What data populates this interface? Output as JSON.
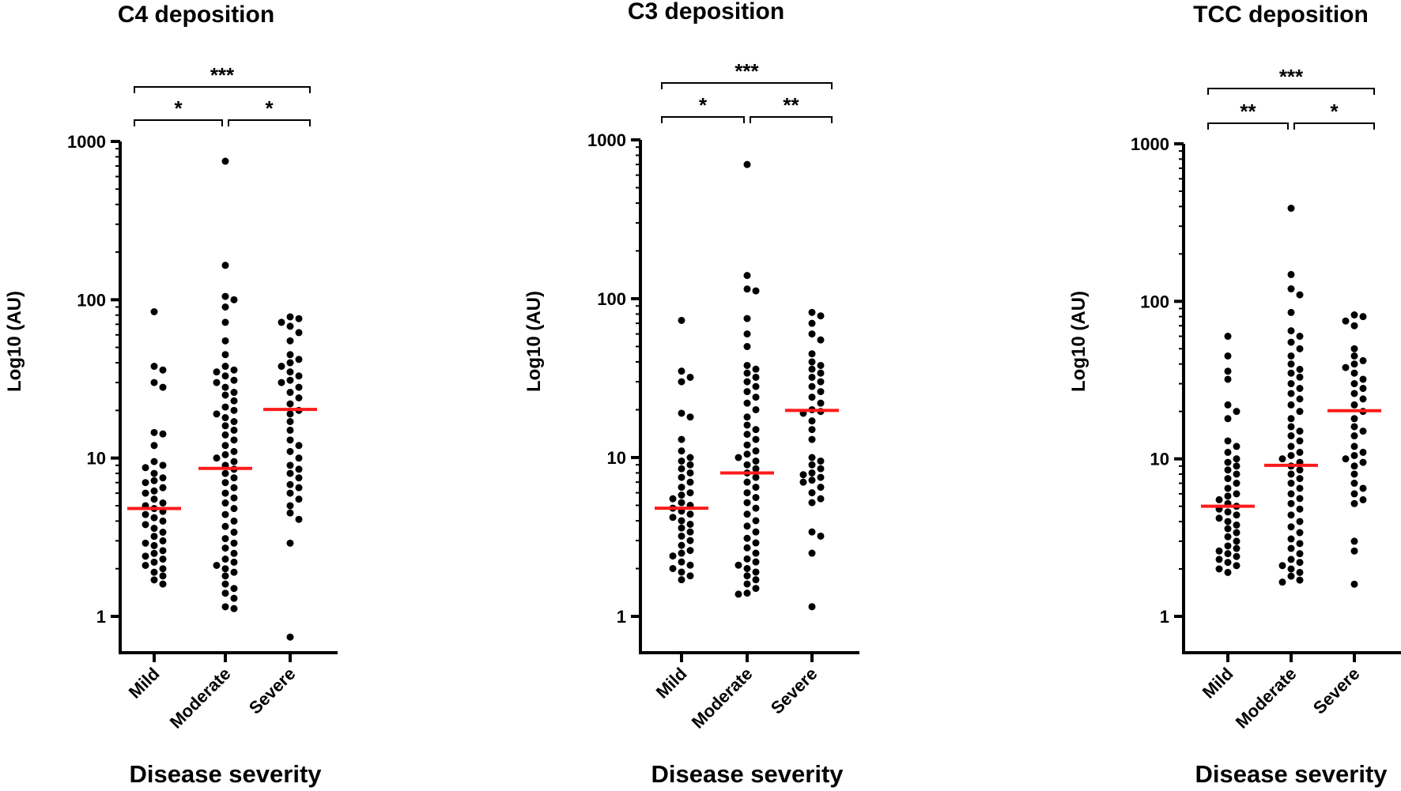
{
  "chart_data": [
    {
      "type": "scatter",
      "subtype": "dot-plot-with-median",
      "title": "C4 deposition",
      "ylabel": "Log10 (AU)",
      "xlabel": "Disease severity",
      "yscale": "log",
      "ylim": [
        0.6,
        1000
      ],
      "yticks": [
        1,
        10,
        100,
        1000
      ],
      "ytick_labels": [
        "1",
        "10",
        "100",
        "1000"
      ],
      "categories": [
        "Mild",
        "Moderate",
        "Severe"
      ],
      "medians": [
        4.8,
        8.6,
        20.3
      ],
      "significance": [
        {
          "from": 0,
          "to": 1,
          "label": "*"
        },
        {
          "from": 1,
          "to": 2,
          "label": "*"
        },
        {
          "from": 0,
          "to": 2,
          "label": "***"
        }
      ],
      "series": [
        {
          "name": "Mild",
          "values": [
            84,
            38,
            36,
            30,
            28,
            14.5,
            14.2,
            12,
            9.5,
            9,
            8.7,
            8,
            7.5,
            7.2,
            7,
            6.5,
            6.2,
            6,
            5.5,
            5.2,
            5,
            4.8,
            4.6,
            4.4,
            4.2,
            4,
            3.8,
            3.6,
            3.4,
            3.2,
            3,
            2.9,
            2.8,
            2.6,
            2.5,
            2.4,
            2.3,
            2.2,
            2.1,
            2,
            1.9,
            1.8,
            1.7,
            1.6
          ]
        },
        {
          "name": "Moderate",
          "values": [
            750,
            165,
            105,
            100,
            90,
            72,
            55,
            45,
            38,
            36,
            35,
            33,
            31,
            30,
            28,
            26,
            25,
            23,
            21,
            20,
            19,
            18,
            17,
            16,
            15,
            14,
            13,
            12,
            11,
            10.5,
            10,
            9.5,
            9,
            8.5,
            8,
            7.5,
            7,
            6.5,
            6,
            5.6,
            5.2,
            4.8,
            4.4,
            4,
            3.7,
            3.4,
            3.1,
            2.9,
            2.7,
            2.5,
            2.3,
            2.2,
            2.1,
            2,
            1.9,
            1.8,
            1.6,
            1.5,
            1.4,
            1.3,
            1.15,
            1.12
          ]
        },
        {
          "name": "Severe",
          "values": [
            78,
            76,
            72,
            68,
            62,
            55,
            45,
            42,
            40,
            38,
            35,
            33,
            31,
            30,
            28,
            26,
            24,
            22,
            20,
            19,
            17,
            15,
            13,
            12,
            11,
            10,
            9,
            8.5,
            8,
            7.5,
            6.8,
            6.5,
            6,
            5.5,
            5,
            4.5,
            4.1,
            2.9,
            0.74
          ]
        }
      ]
    },
    {
      "type": "scatter",
      "subtype": "dot-plot-with-median",
      "title": "C3 deposition",
      "ylabel": "Log10 (AU)",
      "xlabel": "Disease severity",
      "yscale": "log",
      "ylim": [
        0.6,
        1000
      ],
      "yticks": [
        1,
        10,
        100,
        1000
      ],
      "ytick_labels": [
        "1",
        "10",
        "100",
        "1000"
      ],
      "categories": [
        "Mild",
        "Moderate",
        "Severe"
      ],
      "medians": [
        4.8,
        8.0,
        19.8
      ],
      "significance": [
        {
          "from": 0,
          "to": 1,
          "label": "*"
        },
        {
          "from": 1,
          "to": 2,
          "label": "**"
        },
        {
          "from": 0,
          "to": 2,
          "label": "***"
        }
      ],
      "series": [
        {
          "name": "Mild",
          "values": [
            73,
            35,
            32,
            30,
            19,
            18,
            13,
            11,
            10,
            9.5,
            9,
            8.5,
            8,
            7.5,
            7,
            6.5,
            6,
            5.8,
            5.5,
            5.2,
            5,
            4.8,
            4.6,
            4.4,
            4.2,
            4,
            3.8,
            3.6,
            3.4,
            3.2,
            3,
            2.8,
            2.6,
            2.5,
            2.4,
            2.2,
            2.1,
            2,
            1.9,
            1.8,
            1.7
          ]
        },
        {
          "name": "Moderate",
          "values": [
            700,
            140,
            115,
            112,
            75,
            60,
            50,
            38,
            36,
            34,
            32,
            30,
            28,
            26,
            24,
            22,
            20,
            18,
            16,
            15,
            14,
            13,
            12,
            11,
            10.5,
            10,
            9.5,
            9,
            8.5,
            8,
            7.5,
            7,
            6.5,
            6,
            5.6,
            5.2,
            4.8,
            4.4,
            4,
            3.7,
            3.4,
            3.1,
            2.9,
            2.7,
            2.5,
            2.3,
            2.2,
            2.1,
            2,
            1.9,
            1.8,
            1.7,
            1.6,
            1.5,
            1.4,
            1.38
          ]
        },
        {
          "name": "Severe",
          "values": [
            82,
            78,
            70,
            60,
            55,
            45,
            40,
            38,
            36,
            34,
            32,
            30,
            28,
            26,
            24,
            22,
            20,
            19.5,
            19,
            17,
            15,
            13,
            10,
            9.5,
            9,
            8.5,
            8,
            7.8,
            7.5,
            7.2,
            7,
            6.5,
            6,
            5.5,
            5.2,
            3.4,
            3.2,
            2.5,
            1.15
          ]
        }
      ]
    },
    {
      "type": "scatter",
      "subtype": "dot-plot-with-median",
      "title": "TCC deposition",
      "ylabel": "Log10 (AU)",
      "xlabel": "Disease severity",
      "yscale": "log",
      "ylim": [
        0.6,
        1000
      ],
      "yticks": [
        1,
        10,
        100,
        1000
      ],
      "ytick_labels": [
        "1",
        "10",
        "100",
        "1000"
      ],
      "categories": [
        "Mild",
        "Moderate",
        "Severe"
      ],
      "medians": [
        5.0,
        9.1,
        20.2
      ],
      "significance": [
        {
          "from": 0,
          "to": 1,
          "label": "**"
        },
        {
          "from": 1,
          "to": 2,
          "label": "*"
        },
        {
          "from": 0,
          "to": 2,
          "label": "***"
        }
      ],
      "series": [
        {
          "name": "Mild",
          "values": [
            60,
            45,
            36,
            32,
            22,
            20,
            18,
            13,
            12,
            11,
            10,
            9.5,
            9,
            8.5,
            8,
            7.5,
            7,
            6.5,
            6,
            5.8,
            5.5,
            5.2,
            5,
            4.8,
            4.6,
            4.4,
            4.2,
            4,
            3.8,
            3.6,
            3.4,
            3.2,
            3,
            2.8,
            2.7,
            2.6,
            2.5,
            2.4,
            2.3,
            2.2,
            2.1,
            2,
            1.9
          ]
        },
        {
          "name": "Moderate",
          "values": [
            390,
            148,
            120,
            110,
            85,
            65,
            60,
            55,
            50,
            45,
            40,
            37,
            35,
            33,
            30,
            28,
            26,
            24,
            22,
            20,
            18,
            16,
            15,
            14,
            13,
            12,
            11,
            10.5,
            10,
            9.5,
            9,
            8.5,
            8,
            7.5,
            7,
            6.5,
            6,
            5.6,
            5.2,
            4.8,
            4.4,
            4,
            3.7,
            3.4,
            3.1,
            2.9,
            2.7,
            2.5,
            2.3,
            2.2,
            2.1,
            2,
            1.9,
            1.8,
            1.7,
            1.65
          ]
        },
        {
          "name": "Severe",
          "values": [
            82,
            80,
            75,
            70,
            50,
            45,
            42,
            40,
            38,
            35,
            32,
            30,
            28,
            26,
            24,
            22,
            20,
            18,
            16,
            15,
            14,
            12,
            11,
            10.5,
            10,
            9.5,
            9,
            8,
            7,
            6.5,
            6,
            5.5,
            5.2,
            3,
            2.6,
            1.6
          ]
        }
      ]
    }
  ]
}
